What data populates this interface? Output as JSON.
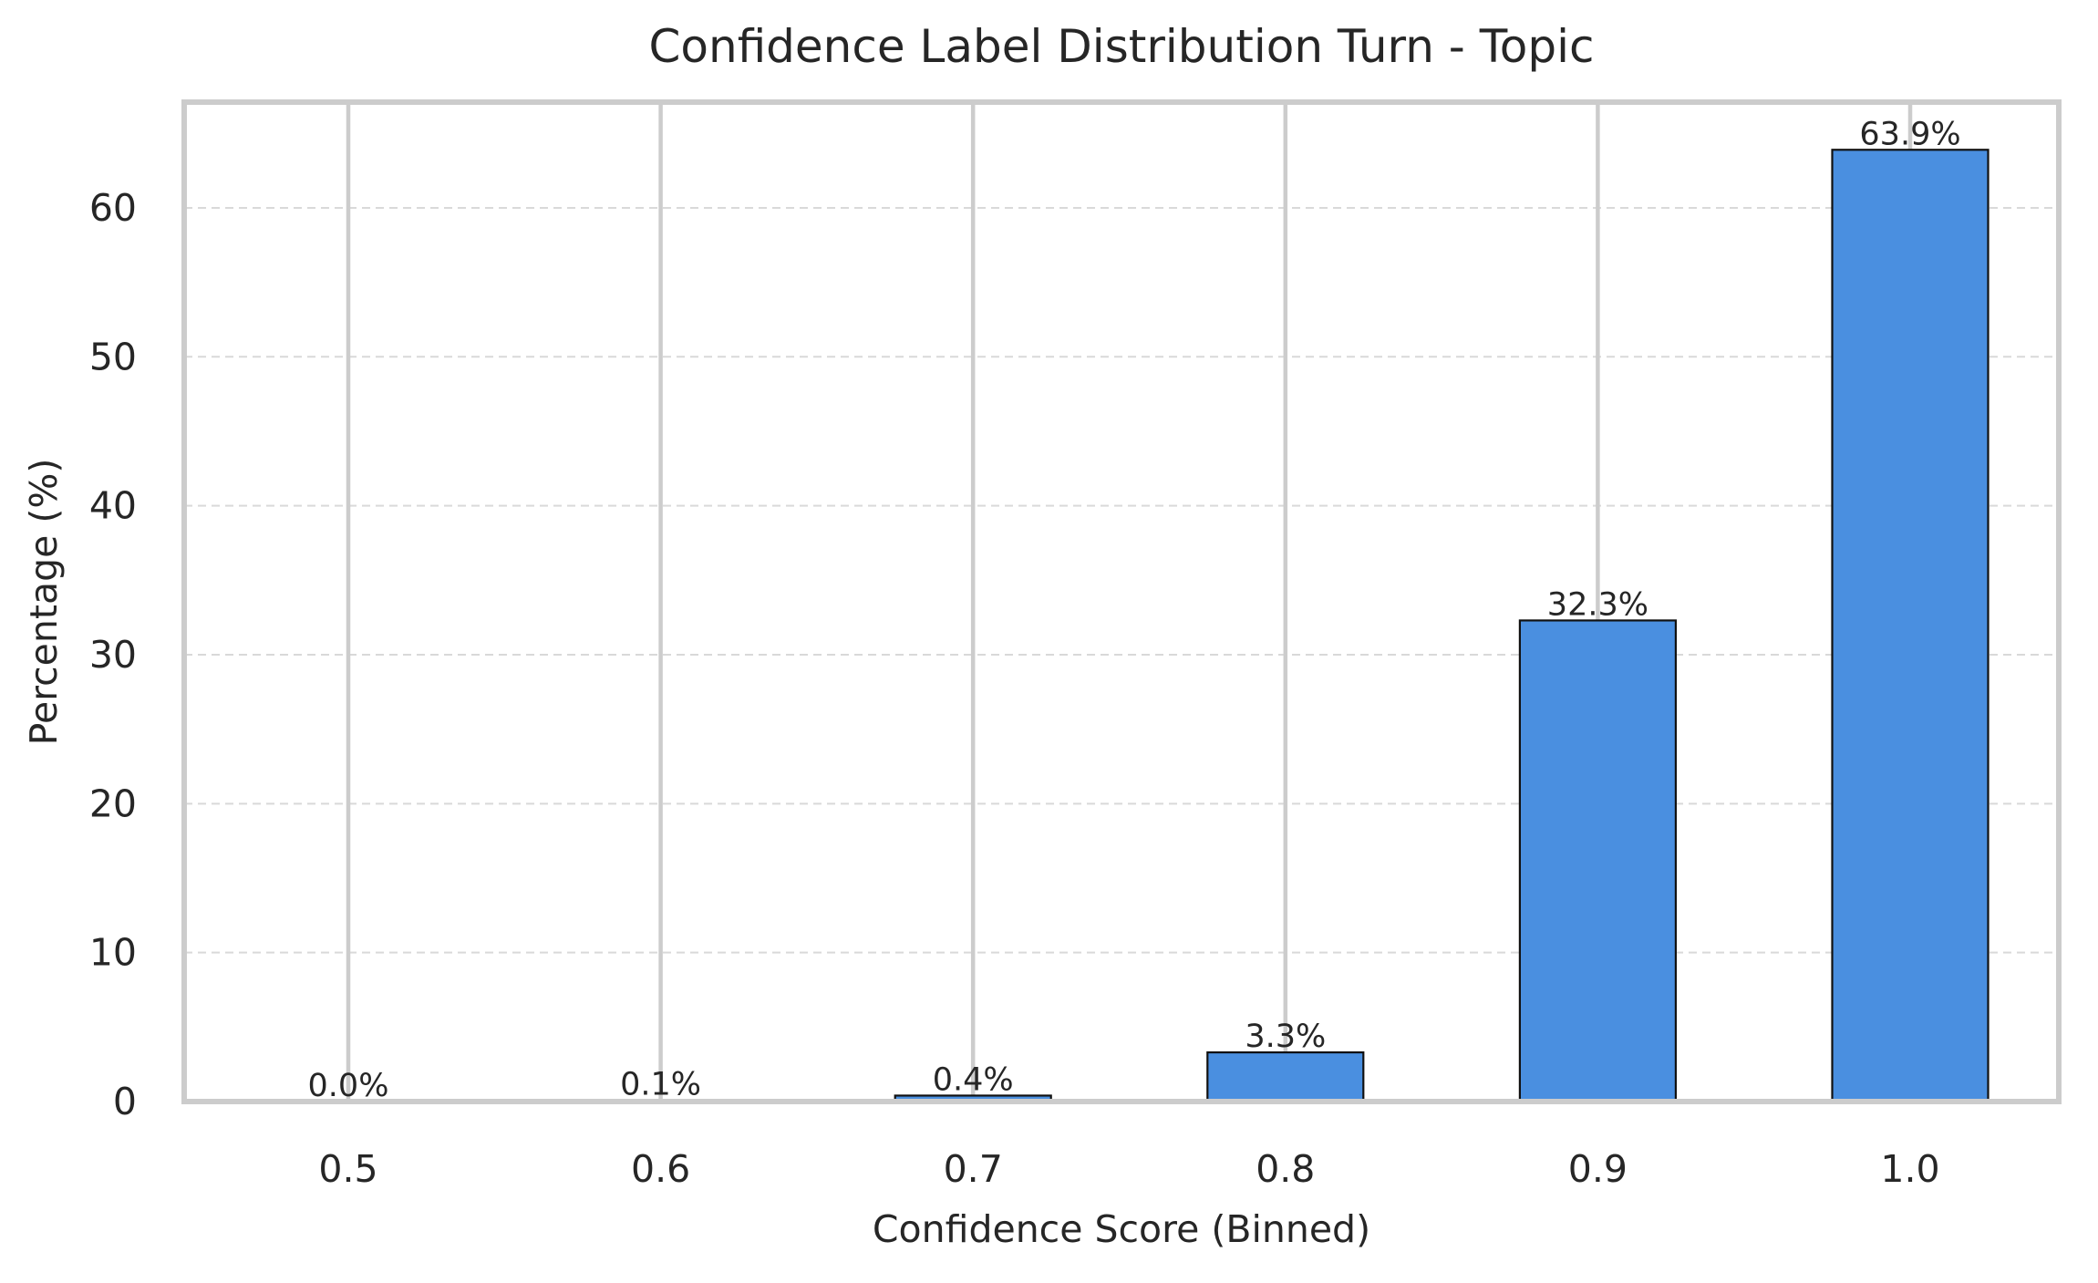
{
  "chart_data": {
    "type": "bar",
    "title": "Confidence Label Distribution Turn - Topic",
    "xlabel": "Confidence Score (Binned)",
    "ylabel": "Percentage (%)",
    "categories": [
      "0.5",
      "0.6",
      "0.7",
      "0.8",
      "0.9",
      "1.0"
    ],
    "values": [
      0.0,
      0.1,
      0.4,
      3.3,
      32.3,
      63.9
    ],
    "value_labels": [
      "0.0%",
      "0.1%",
      "0.4%",
      "3.3%",
      "32.3%",
      "63.9%"
    ],
    "yticks": [
      0,
      10,
      20,
      30,
      40,
      50,
      60
    ],
    "ylim": [
      0,
      67.1
    ],
    "grid": {
      "x": true,
      "y": true
    },
    "bar_color": "#4a8fe0",
    "bar_edge_color": "#111111"
  }
}
